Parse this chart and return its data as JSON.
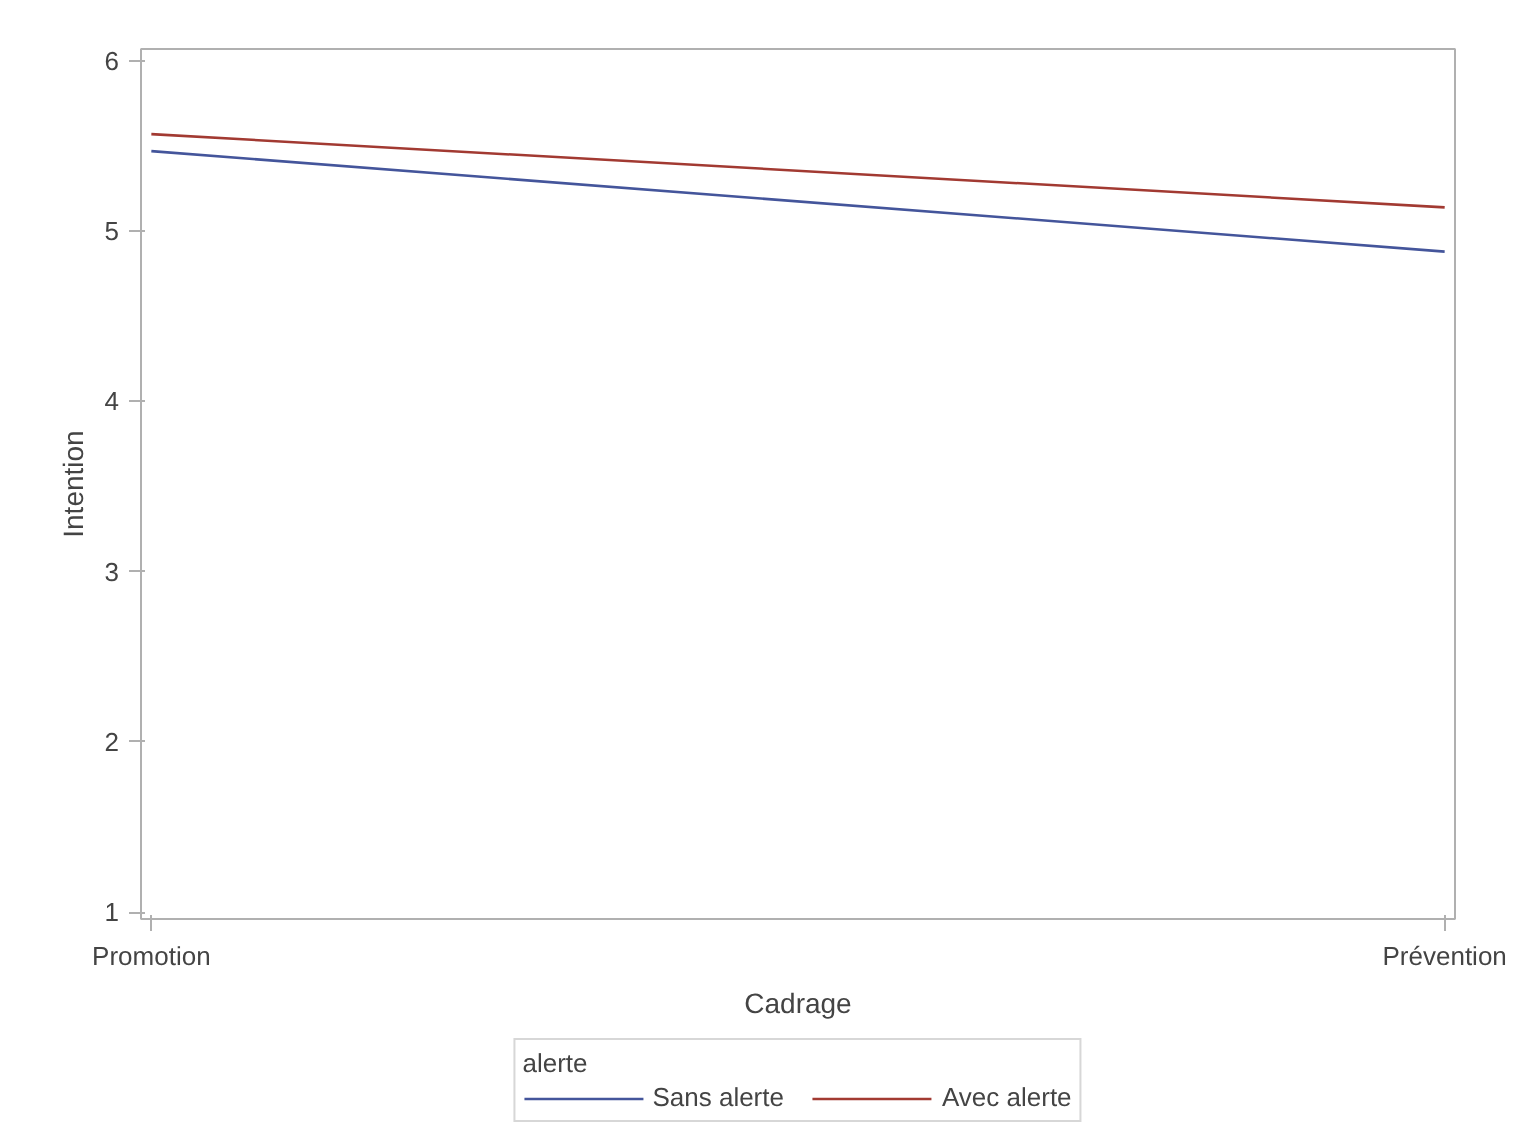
{
  "chart_data": {
    "type": "line",
    "xlabel": "Cadrage",
    "ylabel": "Intention",
    "categories": [
      "Promotion",
      "Prévention"
    ],
    "series": [
      {
        "name": "Sans alerte",
        "color": "#44559b",
        "values": [
          5.47,
          4.88
        ]
      },
      {
        "name": "Avec alerte",
        "color": "#a23a32",
        "values": [
          5.57,
          5.14
        ]
      }
    ],
    "ylim": [
      0.96,
      6.07
    ],
    "yticks": [
      1,
      2,
      3,
      4,
      5,
      6
    ],
    "grid": false,
    "legend": "bottom",
    "legend_title": "alerte",
    "marker": "none",
    "line_style": "solid"
  }
}
